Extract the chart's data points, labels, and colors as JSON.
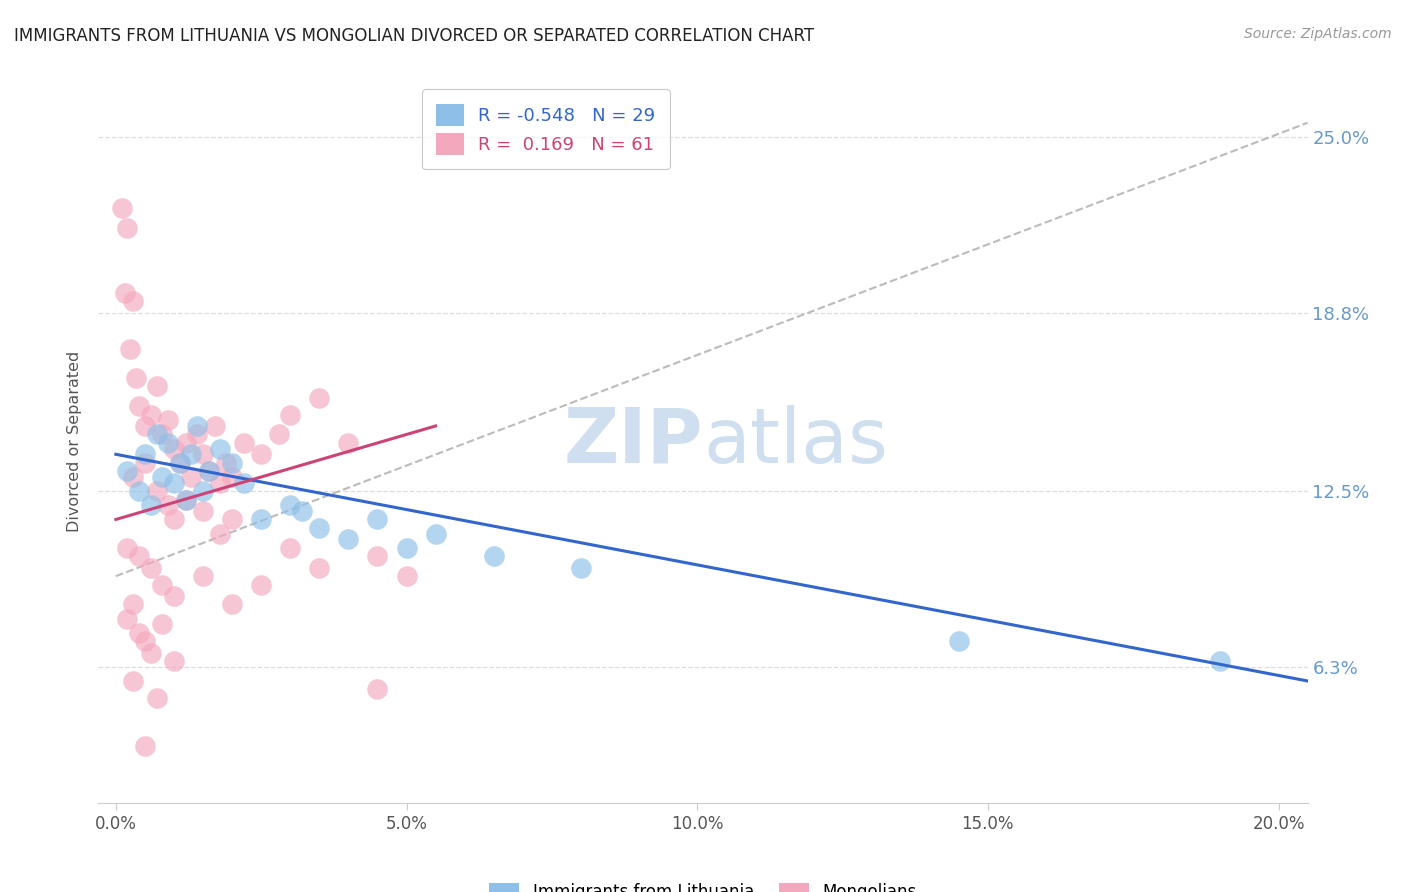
{
  "title": "IMMIGRANTS FROM LITHUANIA VS MONGOLIAN DIVORCED OR SEPARATED CORRELATION CHART",
  "source": "Source: ZipAtlas.com",
  "xlabel_ticks": [
    "0.0%",
    "5.0%",
    "10.0%",
    "15.0%",
    "20.0%"
  ],
  "xlabel_tick_vals": [
    0.0,
    5.0,
    10.0,
    15.0,
    20.0
  ],
  "ylabel_label": "Divorced or Separated",
  "ylabel_ticks": [
    "6.3%",
    "12.5%",
    "18.8%",
    "25.0%"
  ],
  "ylabel_tick_vals": [
    6.3,
    12.5,
    18.8,
    25.0
  ],
  "xlim": [
    -0.3,
    20.5
  ],
  "ylim": [
    1.5,
    27.0
  ],
  "legend_r_blue": "-0.548",
  "legend_n_blue": "29",
  "legend_r_pink": " 0.169",
  "legend_n_pink": "61",
  "blue_color": "#8dbfe8",
  "pink_color": "#f4a8be",
  "trend_blue_color": "#3366cc",
  "trend_pink_color": "#cc4477",
  "trend_gray_color": "#bbbbbb",
  "watermark_color": "#d0dff0",
  "grid_color": "#dddddd",
  "title_color": "#222222",
  "axis_label_color": "#555555",
  "right_tick_color": "#6699cc",
  "blue_scatter": [
    [
      0.2,
      13.2
    ],
    [
      0.4,
      12.5
    ],
    [
      0.5,
      13.8
    ],
    [
      0.6,
      12.0
    ],
    [
      0.7,
      14.5
    ],
    [
      0.8,
      13.0
    ],
    [
      0.9,
      14.2
    ],
    [
      1.0,
      12.8
    ],
    [
      1.1,
      13.5
    ],
    [
      1.2,
      12.2
    ],
    [
      1.3,
      13.8
    ],
    [
      1.4,
      14.8
    ],
    [
      1.5,
      12.5
    ],
    [
      1.6,
      13.2
    ],
    [
      1.8,
      14.0
    ],
    [
      2.0,
      13.5
    ],
    [
      2.2,
      12.8
    ],
    [
      2.5,
      11.5
    ],
    [
      3.0,
      12.0
    ],
    [
      3.2,
      11.8
    ],
    [
      3.5,
      11.2
    ],
    [
      4.0,
      10.8
    ],
    [
      4.5,
      11.5
    ],
    [
      5.0,
      10.5
    ],
    [
      5.5,
      11.0
    ],
    [
      6.5,
      10.2
    ],
    [
      8.0,
      9.8
    ],
    [
      14.5,
      7.2
    ],
    [
      19.0,
      6.5
    ]
  ],
  "pink_scatter": [
    [
      0.1,
      22.5
    ],
    [
      0.15,
      19.5
    ],
    [
      0.2,
      21.8
    ],
    [
      0.25,
      17.5
    ],
    [
      0.3,
      19.2
    ],
    [
      0.35,
      16.5
    ],
    [
      0.4,
      15.5
    ],
    [
      0.5,
      14.8
    ],
    [
      0.6,
      15.2
    ],
    [
      0.7,
      16.2
    ],
    [
      0.8,
      14.5
    ],
    [
      0.9,
      15.0
    ],
    [
      1.0,
      14.0
    ],
    [
      1.1,
      13.5
    ],
    [
      1.2,
      14.2
    ],
    [
      1.3,
      13.0
    ],
    [
      1.4,
      14.5
    ],
    [
      1.5,
      13.8
    ],
    [
      1.6,
      13.2
    ],
    [
      1.7,
      14.8
    ],
    [
      1.8,
      12.8
    ],
    [
      1.9,
      13.5
    ],
    [
      2.0,
      13.0
    ],
    [
      2.2,
      14.2
    ],
    [
      2.5,
      13.8
    ],
    [
      2.8,
      14.5
    ],
    [
      3.0,
      15.2
    ],
    [
      3.5,
      15.8
    ],
    [
      4.0,
      14.2
    ],
    [
      0.3,
      13.0
    ],
    [
      0.5,
      13.5
    ],
    [
      0.7,
      12.5
    ],
    [
      0.9,
      12.0
    ],
    [
      1.0,
      11.5
    ],
    [
      1.2,
      12.2
    ],
    [
      1.5,
      11.8
    ],
    [
      1.8,
      11.0
    ],
    [
      2.0,
      11.5
    ],
    [
      0.2,
      10.5
    ],
    [
      0.4,
      10.2
    ],
    [
      0.6,
      9.8
    ],
    [
      0.8,
      9.2
    ],
    [
      1.0,
      8.8
    ],
    [
      1.5,
      9.5
    ],
    [
      2.0,
      8.5
    ],
    [
      2.5,
      9.2
    ],
    [
      3.0,
      10.5
    ],
    [
      3.5,
      9.8
    ],
    [
      4.5,
      10.2
    ],
    [
      5.0,
      9.5
    ],
    [
      0.2,
      8.0
    ],
    [
      0.3,
      8.5
    ],
    [
      0.4,
      7.5
    ],
    [
      0.5,
      7.2
    ],
    [
      0.6,
      6.8
    ],
    [
      0.8,
      7.8
    ],
    [
      0.3,
      5.8
    ],
    [
      1.0,
      6.5
    ],
    [
      0.7,
      5.2
    ],
    [
      0.5,
      3.5
    ],
    [
      4.5,
      5.5
    ]
  ],
  "blue_trend_x": [
    0.0,
    20.5
  ],
  "blue_trend_y": [
    13.8,
    5.8
  ],
  "pink_trend_x": [
    0.0,
    5.5
  ],
  "pink_trend_y": [
    11.5,
    14.8
  ],
  "gray_trend_x": [
    0.0,
    20.5
  ],
  "gray_trend_y": [
    9.5,
    25.5
  ]
}
